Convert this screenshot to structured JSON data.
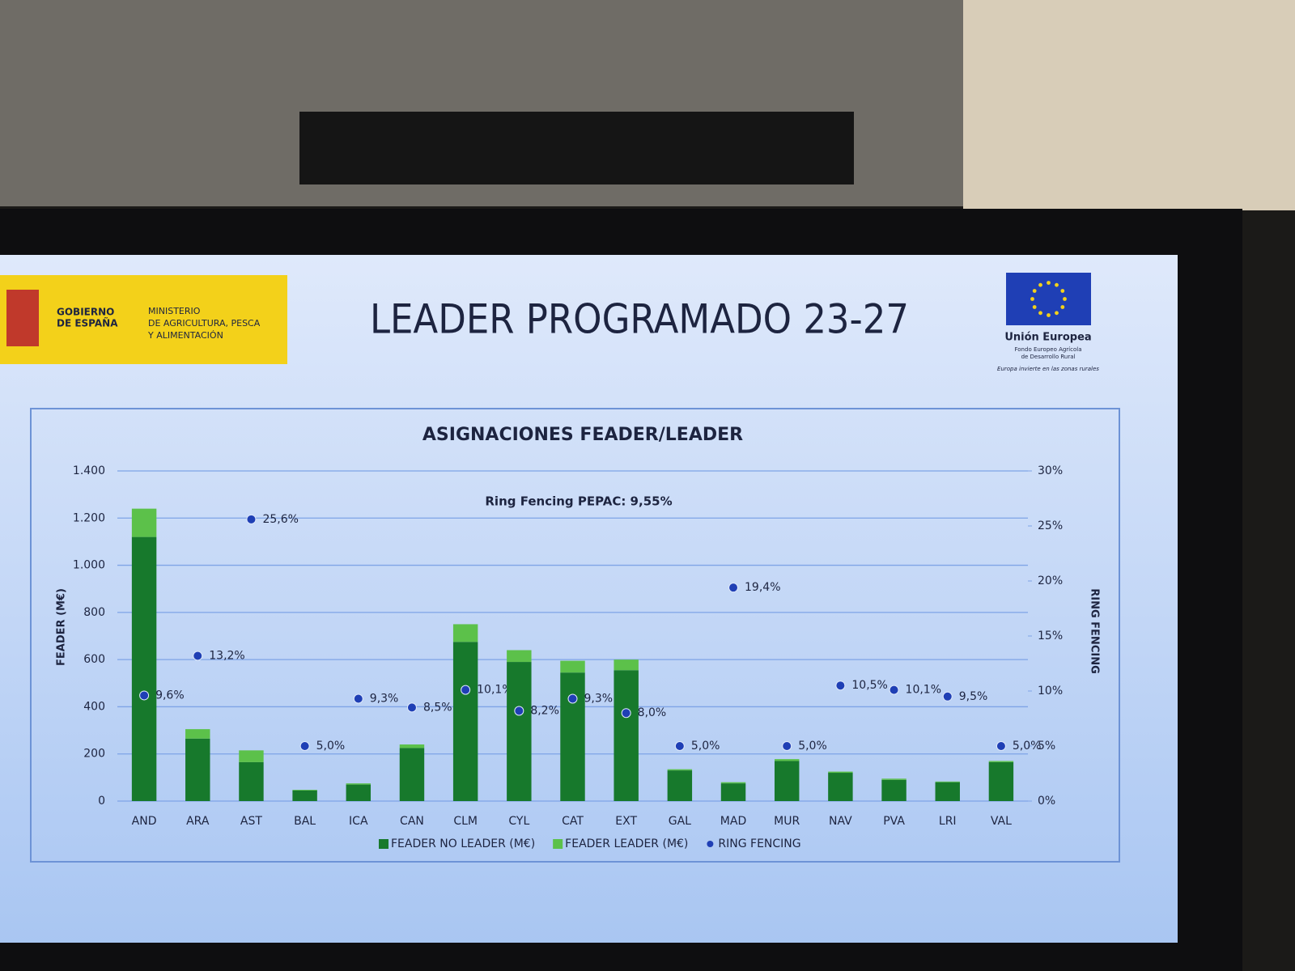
{
  "header": {
    "gov": [
      "GOBIERNO",
      "DE ESPAÑA"
    ],
    "ministry": [
      "MINISTERIO",
      "DE AGRICULTURA, PESCA",
      "Y ALIMENTACIÓN"
    ],
    "title": "LEADER PROGRAMADO 23-27",
    "eu_name": "Unión Europea",
    "eu_fund": [
      "Fondo Europeo Agrícola",
      "de Desarrollo Rural"
    ],
    "eu_motto": "Europa invierte en las zonas rurales"
  },
  "chart_data": {
    "type": "bar",
    "title": "ASIGNACIONES FEADER/LEADER",
    "annotation": "Ring Fencing PEPAC: 9,55%",
    "ylabel": "FEADER (M€)",
    "y2label": "RING FENCING",
    "stacked": true,
    "categories": [
      "AND",
      "ARA",
      "AST",
      "BAL",
      "ICA",
      "CAN",
      "CLM",
      "CYL",
      "CAT",
      "EXT",
      "GAL",
      "MAD",
      "MUR",
      "NAV",
      "PVA",
      "LRI",
      "VAL"
    ],
    "series": [
      {
        "name": "FEADER NO LEADER (M€)",
        "color": "#17792c",
        "values": [
          1120,
          265,
          165,
          45,
          70,
          225,
          675,
          590,
          545,
          555,
          130,
          75,
          170,
          120,
          90,
          80,
          165
        ]
      },
      {
        "name": "FEADER LEADER (M€)",
        "color": "#5cc14a",
        "values": [
          120,
          40,
          50,
          3,
          5,
          15,
          75,
          50,
          50,
          45,
          5,
          5,
          8,
          5,
          5,
          3,
          5
        ]
      },
      {
        "name": "RING FENCING",
        "color": "#1f3fb5",
        "axis": "y2",
        "values": [
          9.6,
          13.2,
          25.6,
          5.0,
          9.3,
          8.5,
          10.1,
          8.2,
          9.3,
          8.0,
          5.0,
          19.4,
          5.0,
          10.5,
          10.1,
          9.5,
          5.0
        ],
        "value_labels": [
          "9,6%",
          "13,2%",
          "25,6%",
          "5,0%",
          "9,3%",
          "8,5%",
          "10,1%",
          "8,2%",
          "9,3%",
          "8,0%",
          "5,0%",
          "19,4%",
          "5,0%",
          "10,5%",
          "10,1%",
          "9,5%",
          "5,0%"
        ]
      }
    ],
    "ylim": [
      0,
      1400
    ],
    "yticks": [
      0,
      200,
      400,
      600,
      800,
      {
        "value": 1000,
        "label": "1.000"
      },
      {
        "value": 1200,
        "label": "1.200"
      },
      {
        "value": 1400,
        "label": "1.400"
      }
    ],
    "y2lim": [
      0,
      30
    ],
    "y2ticks": [
      {
        "value": 0,
        "label": "0%"
      },
      {
        "value": 5,
        "label": "5%"
      },
      {
        "value": 10,
        "label": "10%"
      },
      {
        "value": 15,
        "label": "15%"
      },
      {
        "value": 20,
        "label": "20%"
      },
      {
        "value": 25,
        "label": "25%"
      },
      {
        "value": 30,
        "label": "30%"
      }
    ],
    "grid": true,
    "legend": "bottom"
  }
}
